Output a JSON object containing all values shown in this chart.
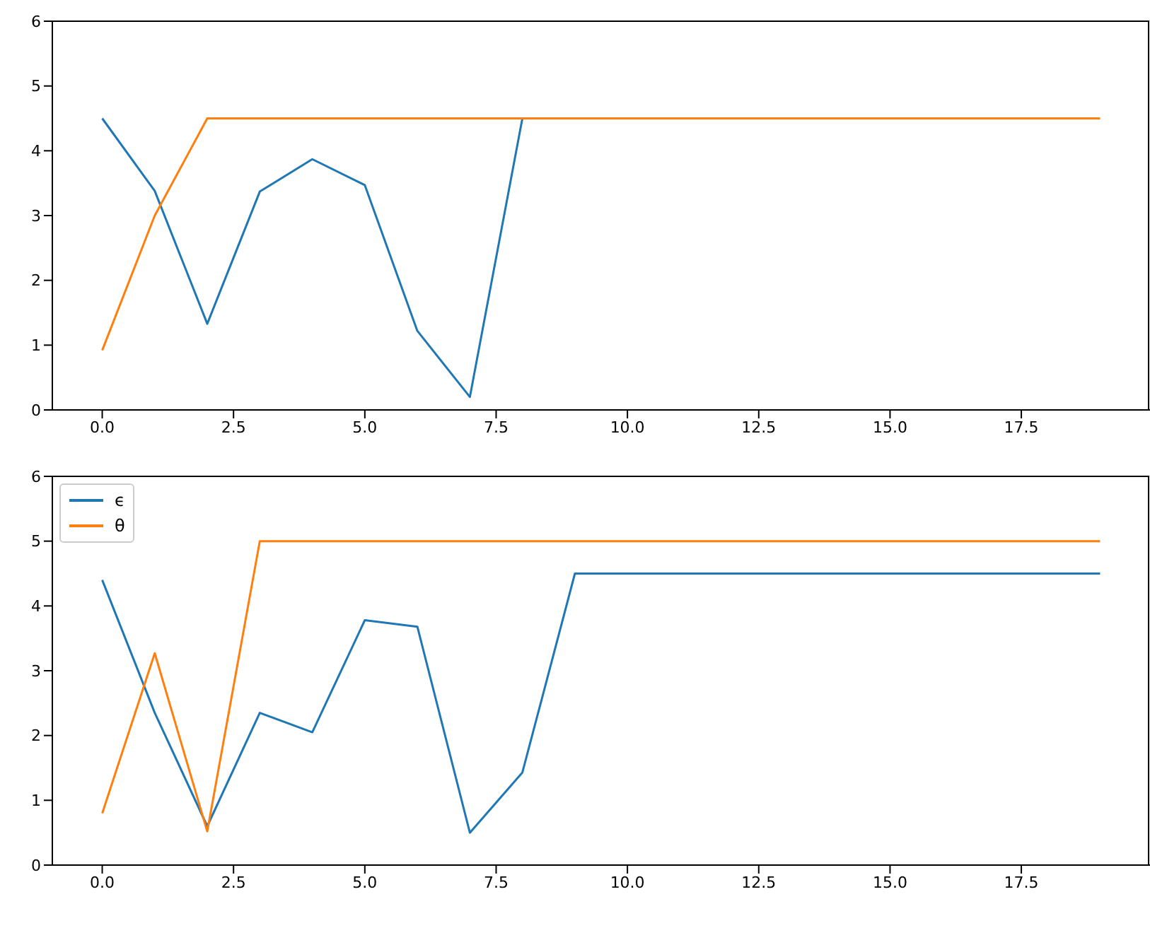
{
  "chart_data": [
    {
      "type": "line",
      "x": [
        0,
        1,
        2,
        3,
        4,
        5,
        6,
        7,
        8,
        9,
        10,
        11,
        12,
        13,
        14,
        15,
        16,
        17,
        18,
        19
      ],
      "series": [
        {
          "color": "#1f77b4",
          "values": [
            4.5,
            3.38,
            1.33,
            3.37,
            3.87,
            3.47,
            1.22,
            0.2,
            4.5,
            null,
            null,
            null,
            null,
            null,
            null,
            null,
            null,
            null,
            null,
            null
          ]
        },
        {
          "color": "#ff7f0e",
          "values": [
            0.92,
            3.0,
            4.5,
            4.5,
            4.5,
            4.5,
            4.5,
            4.5,
            4.5,
            4.5,
            4.5,
            4.5,
            4.5,
            4.5,
            4.5,
            4.5,
            4.5,
            4.5,
            4.5,
            4.5
          ]
        }
      ],
      "xlim": [
        -0.95,
        19.95
      ],
      "xticks": [
        {
          "value": 0,
          "label": "0.0"
        },
        {
          "value": 2.5,
          "label": "2.5"
        },
        {
          "value": 5,
          "label": "5.0"
        },
        {
          "value": 7.5,
          "label": "7.5"
        },
        {
          "value": 10,
          "label": "10.0"
        },
        {
          "value": 12.5,
          "label": "12.5"
        },
        {
          "value": 15,
          "label": "15.0"
        },
        {
          "value": 17.5,
          "label": "17.5"
        }
      ],
      "ylim": [
        0,
        6
      ],
      "yticks": [
        0,
        1,
        2,
        3,
        4,
        5,
        6
      ],
      "legend": false,
      "marker": "none",
      "line_style": "solid",
      "grid": false
    },
    {
      "type": "line",
      "x": [
        0,
        1,
        2,
        3,
        4,
        5,
        6,
        7,
        8,
        9,
        10,
        11,
        12,
        13,
        14,
        15,
        16,
        17,
        18,
        19
      ],
      "series": [
        {
          "name": "ϵ",
          "color": "#1f77b4",
          "values": [
            4.4,
            2.35,
            0.6,
            2.35,
            2.05,
            3.78,
            3.68,
            0.5,
            1.43,
            4.5,
            4.5,
            4.5,
            4.5,
            4.5,
            4.5,
            4.5,
            4.5,
            4.5,
            4.5,
            4.5
          ]
        },
        {
          "name": "θ",
          "color": "#ff7f0e",
          "values": [
            0.8,
            3.27,
            0.52,
            5,
            5,
            5,
            5,
            5,
            5,
            5,
            5,
            5,
            5,
            5,
            5,
            5,
            5,
            5,
            5,
            5
          ]
        }
      ],
      "xlim": [
        -0.95,
        19.95
      ],
      "xticks": [
        {
          "value": 0,
          "label": "0.0"
        },
        {
          "value": 2.5,
          "label": "2.5"
        },
        {
          "value": 5,
          "label": "5.0"
        },
        {
          "value": 7.5,
          "label": "7.5"
        },
        {
          "value": 10,
          "label": "10.0"
        },
        {
          "value": 12.5,
          "label": "12.5"
        },
        {
          "value": 15,
          "label": "15.0"
        },
        {
          "value": 17.5,
          "label": "17.5"
        }
      ],
      "ylim": [
        0,
        6
      ],
      "yticks": [
        0,
        1,
        2,
        3,
        4,
        5,
        6
      ],
      "legend": "top left",
      "marker": "none",
      "line_style": "solid",
      "grid": false
    }
  ]
}
